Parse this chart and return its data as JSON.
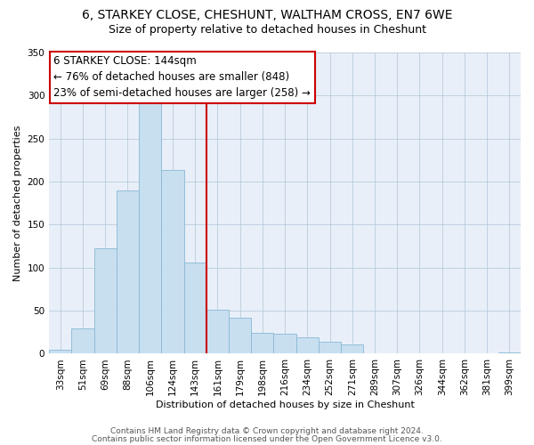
{
  "title": "6, STARKEY CLOSE, CHESHUNT, WALTHAM CROSS, EN7 6WE",
  "subtitle": "Size of property relative to detached houses in Cheshunt",
  "xlabel": "Distribution of detached houses by size in Cheshunt",
  "ylabel": "Number of detached properties",
  "bar_labels": [
    "33sqm",
    "51sqm",
    "69sqm",
    "88sqm",
    "106sqm",
    "124sqm",
    "143sqm",
    "161sqm",
    "179sqm",
    "198sqm",
    "216sqm",
    "234sqm",
    "252sqm",
    "271sqm",
    "289sqm",
    "307sqm",
    "326sqm",
    "344sqm",
    "362sqm",
    "381sqm",
    "399sqm"
  ],
  "bar_heights": [
    5,
    29,
    122,
    190,
    292,
    213,
    106,
    51,
    42,
    24,
    23,
    19,
    14,
    11,
    0,
    0,
    0,
    0,
    0,
    0,
    2
  ],
  "bar_color": "#c8dff0",
  "bar_edge_color": "#8ab8d4",
  "vline_x": 6.5,
  "vline_color": "#cc0000",
  "annotation_title": "6 STARKEY CLOSE: 144sqm",
  "annotation_line1": "← 76% of detached houses are smaller (848)",
  "annotation_line2": "23% of semi-detached houses are larger (258) →",
  "annotation_box_color": "#ffffff",
  "annotation_box_edge": "#cc0000",
  "bg_color": "#e8eff8",
  "ylim": [
    0,
    350
  ],
  "yticks": [
    0,
    50,
    100,
    150,
    200,
    250,
    300,
    350
  ],
  "footer1": "Contains HM Land Registry data © Crown copyright and database right 2024.",
  "footer2": "Contains public sector information licensed under the Open Government Licence v3.0.",
  "title_fontsize": 10,
  "subtitle_fontsize": 9,
  "axis_fontsize": 8,
  "tick_fontsize": 7.5,
  "annotation_fontsize": 8.5,
  "footer_fontsize": 6.5
}
